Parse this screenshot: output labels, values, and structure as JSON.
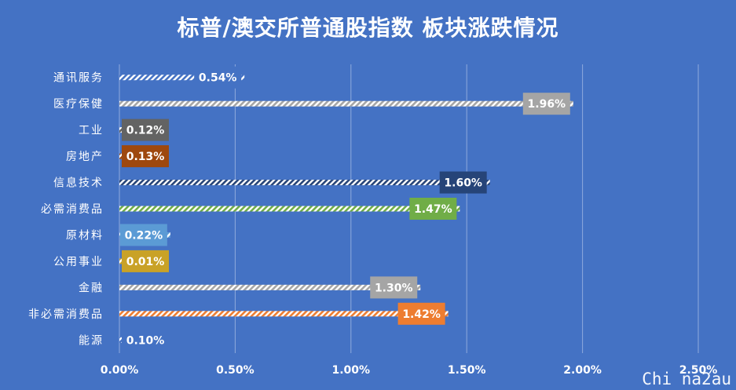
{
  "chart_data": {
    "type": "bar",
    "orientation": "horizontal",
    "title": "标普/澳交所普通股指数 板块涨跌情况",
    "categories": [
      "通讯服务",
      "医疗保健",
      "工业",
      "房地产",
      "信息技术",
      "必需消费品",
      "原材料",
      "公用事业",
      "金融",
      "非必需消费品",
      "能源"
    ],
    "values": [
      0.54,
      1.96,
      0.12,
      0.13,
      1.6,
      1.47,
      0.22,
      0.01,
      1.3,
      1.42,
      0.1
    ],
    "value_labels": [
      "0.54%",
      "1.96%",
      "0.12%",
      "0.13%",
      "1.60%",
      "1.47%",
      "0.22%",
      "0.01%",
      "1.30%",
      "1.42%",
      "0.10%"
    ],
    "bar_colors": [
      "#4472C4",
      "#A5A5A5",
      "#636363",
      "#9E480E",
      "#264478",
      "#70AD47",
      "#5B9BD5",
      "#C9A227",
      "#A5A5A5",
      "#ED7D31",
      "#4472C4"
    ],
    "xlim": [
      0,
      2.5
    ],
    "xticks": [
      0,
      0.5,
      1.0,
      1.5,
      2.0,
      2.5
    ],
    "xtick_labels": [
      "0.00%",
      "0.50%",
      "1.00%",
      "1.50%",
      "2.00%",
      "2.50%"
    ],
    "grid": true,
    "legend": "none"
  },
  "watermark": "Chi na2au"
}
